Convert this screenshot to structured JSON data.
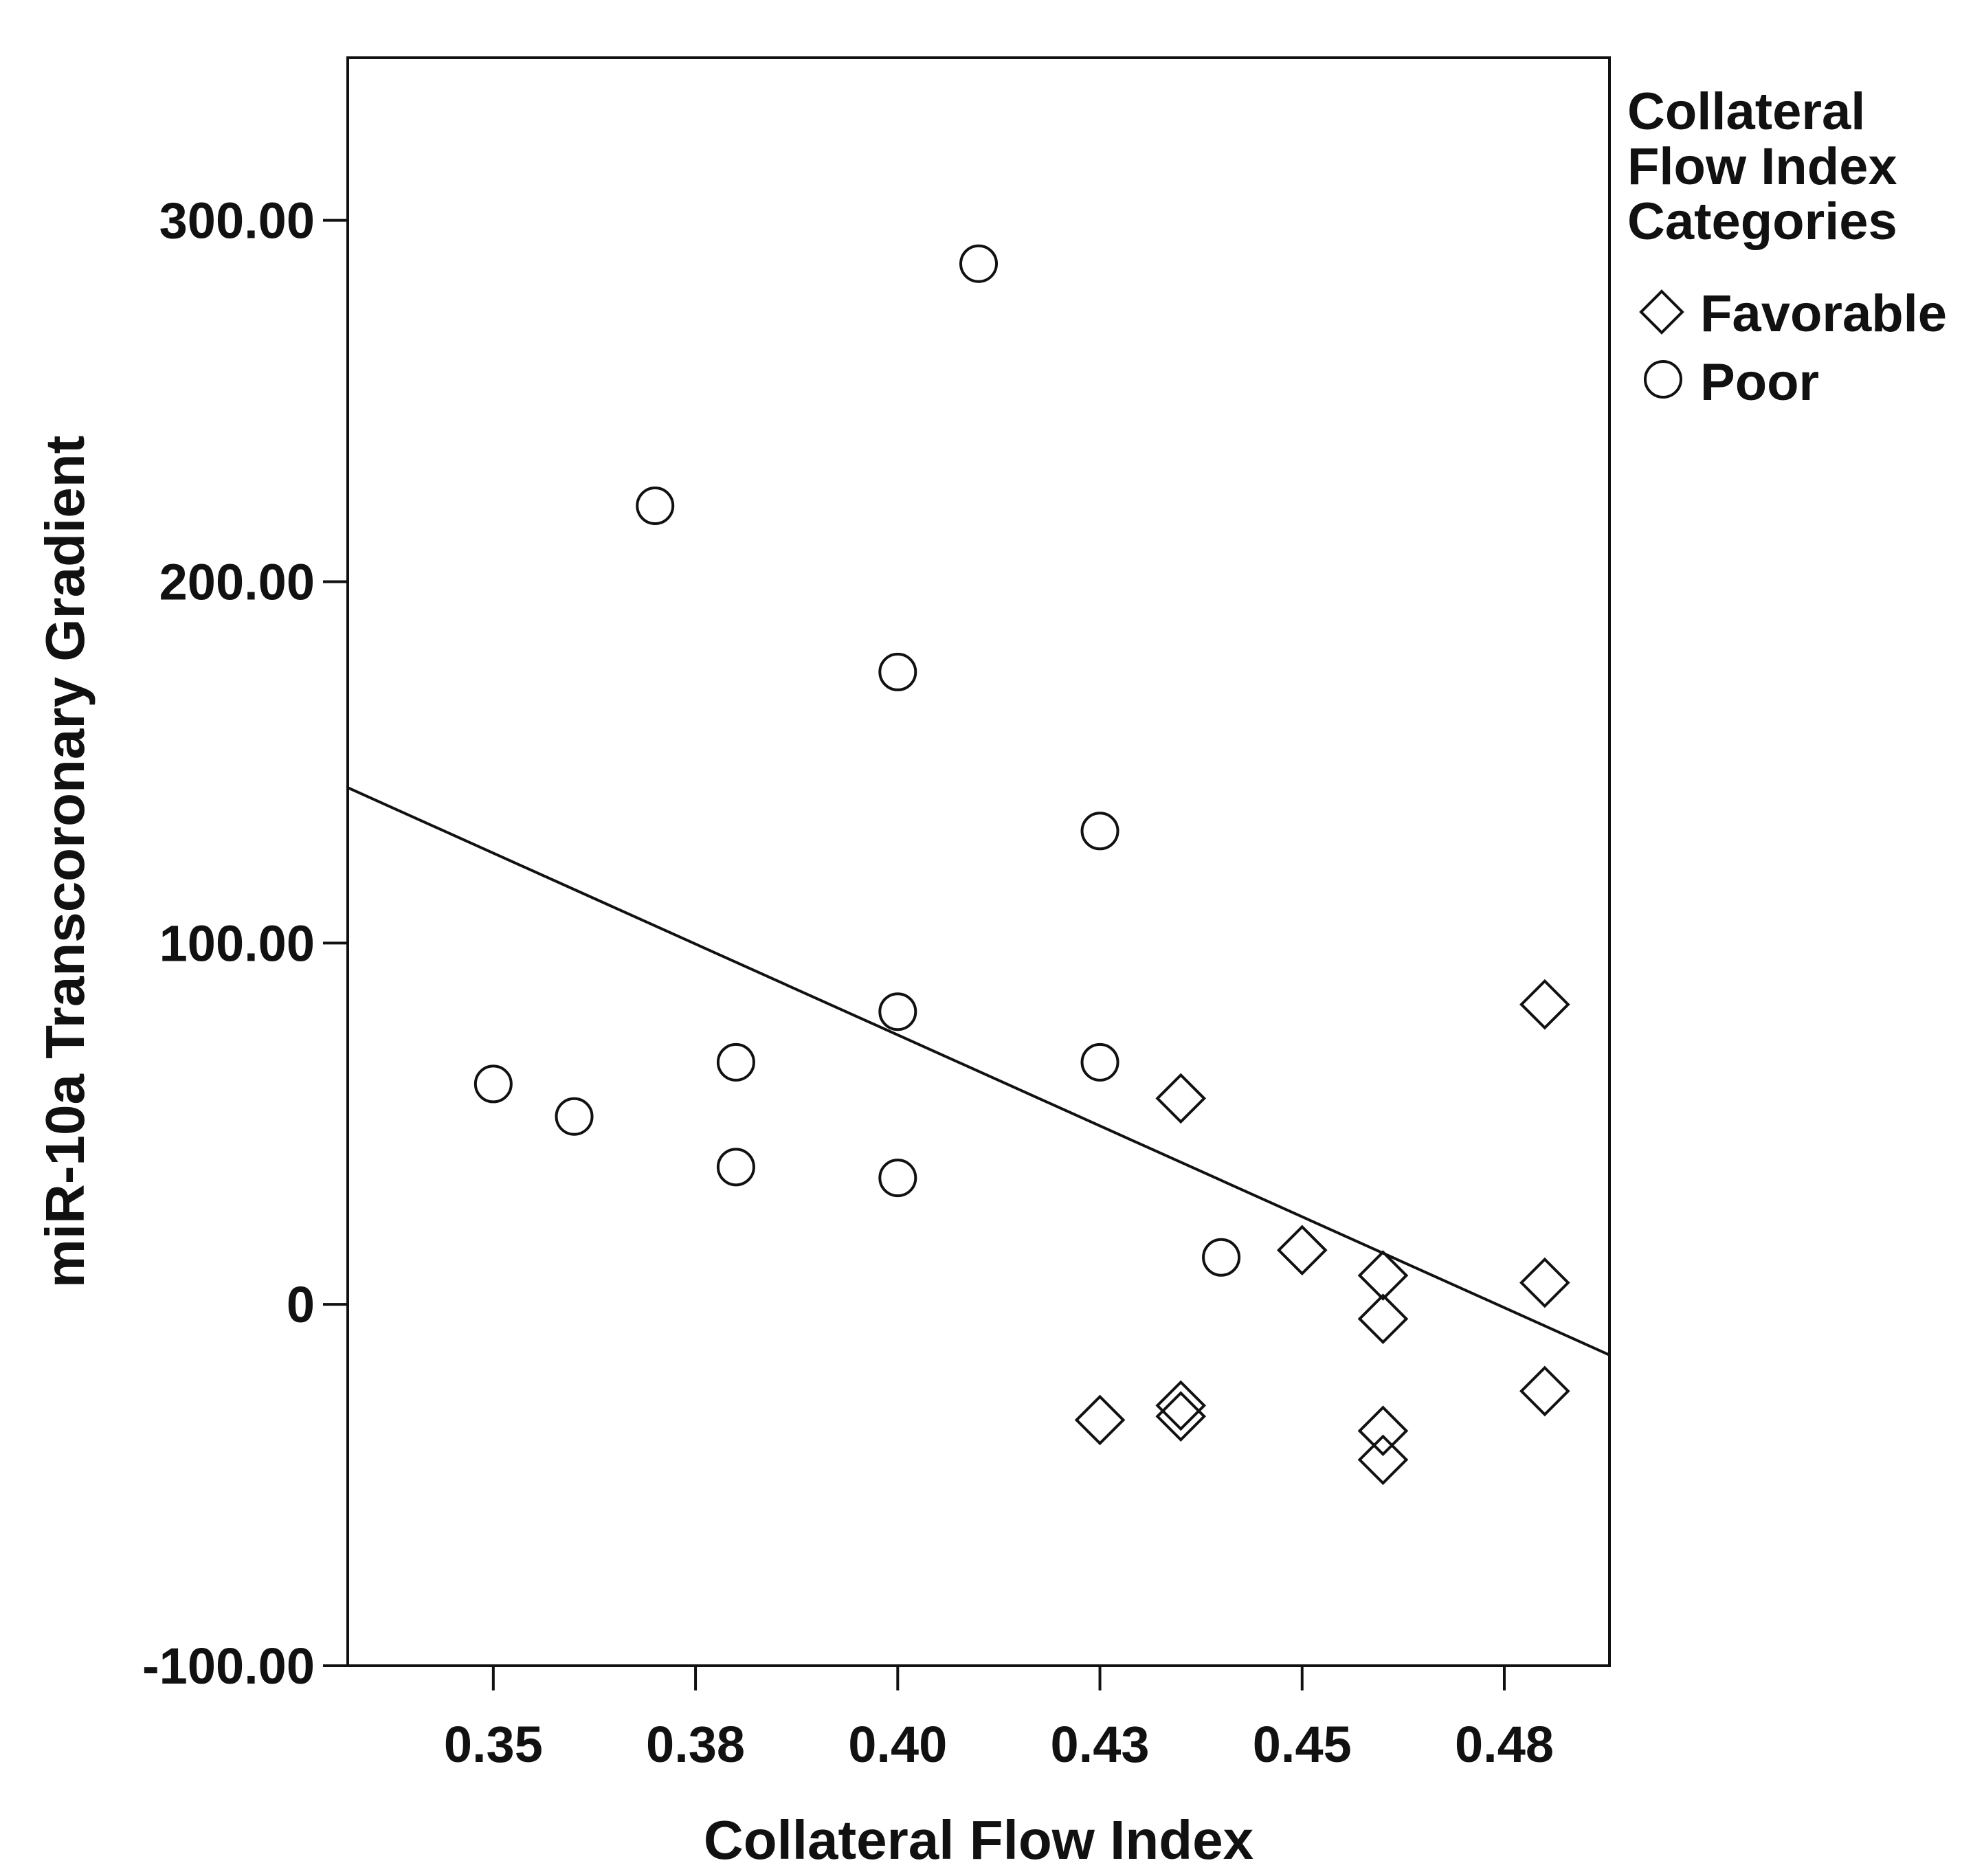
{
  "chart_data": {
    "type": "scatter",
    "title": "",
    "xlabel": "Collateral Flow Index",
    "ylabel": "miR-10a Transcoronary Gradient",
    "xlim": [
      0.332,
      0.488
    ],
    "ylim": [
      -100,
      345
    ],
    "xticks": [
      0.35,
      0.375,
      0.4,
      0.425,
      0.45,
      0.475
    ],
    "xtick_labels": [
      "0.35",
      "0.38",
      "0.40",
      "0.43",
      "0.45",
      "0.48"
    ],
    "yticks": [
      -100,
      0,
      100,
      200,
      300
    ],
    "ytick_labels": [
      "-100.00",
      "0",
      "100.00",
      "200.00",
      "300.00"
    ],
    "grid": false,
    "legend": {
      "title": "Collateral Flow Index Categories",
      "title_lines": [
        "Collateral",
        "Flow Index",
        "Categories"
      ],
      "position": "top-right-outside",
      "entries": [
        {
          "label": "Favorable",
          "marker": "diamond"
        },
        {
          "label": "Poor",
          "marker": "circle"
        }
      ]
    },
    "series": [
      {
        "name": "Favorable",
        "marker": "diamond",
        "points": [
          {
            "x": 0.425,
            "y": -32
          },
          {
            "x": 0.435,
            "y": 57
          },
          {
            "x": 0.435,
            "y": -28
          },
          {
            "x": 0.435,
            "y": -31
          },
          {
            "x": 0.45,
            "y": 15
          },
          {
            "x": 0.46,
            "y": 8
          },
          {
            "x": 0.46,
            "y": -4
          },
          {
            "x": 0.46,
            "y": -35
          },
          {
            "x": 0.46,
            "y": -43
          },
          {
            "x": 0.48,
            "y": 83
          },
          {
            "x": 0.48,
            "y": 6
          },
          {
            "x": 0.48,
            "y": -24
          }
        ]
      },
      {
        "name": "Poor",
        "marker": "circle",
        "points": [
          {
            "x": 0.35,
            "y": 61
          },
          {
            "x": 0.36,
            "y": 52
          },
          {
            "x": 0.37,
            "y": 221
          },
          {
            "x": 0.38,
            "y": 67
          },
          {
            "x": 0.38,
            "y": 38
          },
          {
            "x": 0.4,
            "y": 175
          },
          {
            "x": 0.4,
            "y": 81
          },
          {
            "x": 0.4,
            "y": 35
          },
          {
            "x": 0.41,
            "y": 288
          },
          {
            "x": 0.425,
            "y": 131
          },
          {
            "x": 0.425,
            "y": 67
          },
          {
            "x": 0.44,
            "y": 13
          }
        ]
      }
    ],
    "fit_line": {
      "type": "linear",
      "x": [
        0.332,
        0.488
      ],
      "y": [
        143,
        -14
      ]
    }
  }
}
